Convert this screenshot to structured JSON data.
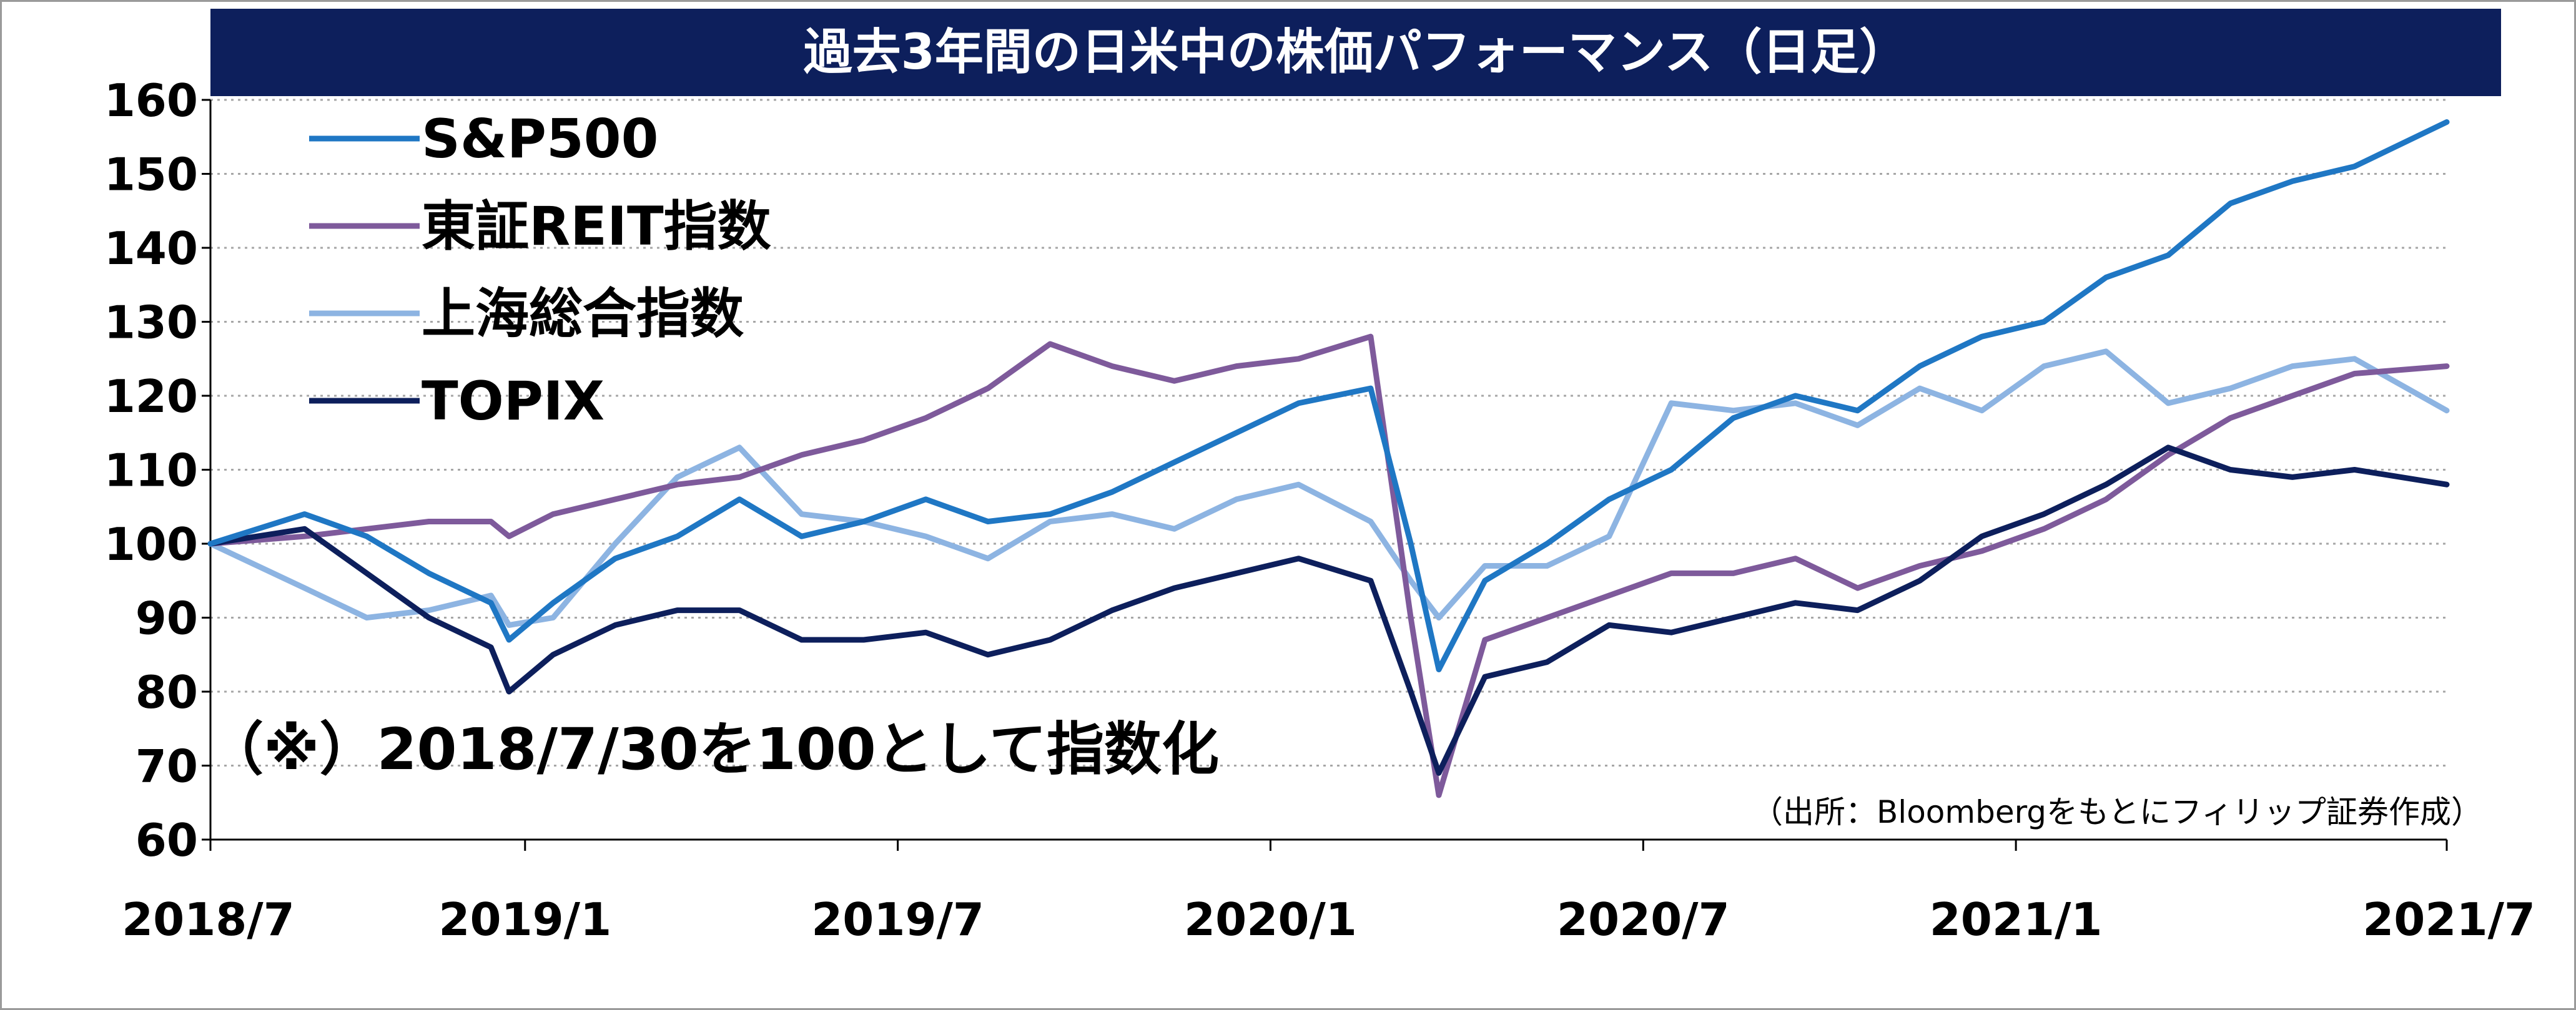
{
  "chart_data": {
    "type": "line",
    "title": "過去3年間の日米中の株価パフォーマンス（日足）",
    "note": "（※）2018/7/30を100として指数化",
    "source": "（出所：Bloombergをもとにフィリップ証券作成）",
    "x_ticks": [
      "2018/7",
      "2019/1",
      "2019/7",
      "2020/1",
      "2020/7",
      "2021/1",
      "2021/7"
    ],
    "y_ticks": [
      60,
      70,
      80,
      90,
      100,
      110,
      120,
      130,
      140,
      150,
      160
    ],
    "ylim": [
      60,
      160
    ],
    "xlim": [
      "2018/7/30",
      "2021/7/30"
    ],
    "grid": true,
    "legend_position": "top-left",
    "colors": {
      "title_bg": "#0d1f5c",
      "title_text": "#ffffff",
      "gridline": "#a6a6a6"
    },
    "x": [
      "2018/7/30",
      "2018/9",
      "2018/10",
      "2018/11",
      "2018/12",
      "2018/12/24",
      "2019/1",
      "2019/2",
      "2019/3",
      "2019/4",
      "2019/5",
      "2019/6",
      "2019/7",
      "2019/8",
      "2019/9",
      "2019/10",
      "2019/11",
      "2019/12",
      "2020/1",
      "2020/2/20",
      "2020/3/9",
      "2020/3/23",
      "2020/4",
      "2020/5",
      "2020/6",
      "2020/7",
      "2020/8",
      "2020/9",
      "2020/10",
      "2020/11",
      "2020/12",
      "2021/1",
      "2021/2",
      "2021/3",
      "2021/4",
      "2021/5",
      "2021/6",
      "2021/7/30"
    ],
    "series": [
      {
        "name": "S&P500",
        "color": "#1f77c4",
        "values": [
          100,
          104,
          101,
          96,
          92,
          87,
          92,
          98,
          101,
          106,
          101,
          103,
          106,
          103,
          104,
          107,
          111,
          115,
          119,
          121,
          100,
          83,
          95,
          100,
          106,
          110,
          117,
          120,
          118,
          124,
          128,
          130,
          136,
          139,
          146,
          149,
          151,
          157
        ]
      },
      {
        "name": "東証REIT指数",
        "color": "#7e5a9b",
        "values": [
          100,
          101,
          102,
          103,
          103,
          101,
          104,
          106,
          108,
          109,
          112,
          114,
          117,
          121,
          127,
          124,
          122,
          124,
          125,
          128,
          90,
          66,
          87,
          90,
          93,
          96,
          96,
          98,
          94,
          97,
          99,
          102,
          106,
          112,
          117,
          120,
          123,
          124
        ]
      },
      {
        "name": "上海総合指数",
        "color": "#8db4e2",
        "values": [
          100,
          94,
          90,
          91,
          93,
          89,
          90,
          100,
          109,
          113,
          104,
          103,
          101,
          98,
          103,
          104,
          102,
          106,
          108,
          103,
          95,
          90,
          97,
          97,
          101,
          119,
          118,
          119,
          116,
          121,
          118,
          124,
          126,
          119,
          121,
          124,
          125,
          118
        ]
      },
      {
        "name": "TOPIX",
        "color": "#0d1f5c",
        "values": [
          100,
          102,
          96,
          90,
          86,
          80,
          85,
          89,
          91,
          91,
          87,
          87,
          88,
          85,
          87,
          91,
          94,
          96,
          98,
          95,
          80,
          69,
          82,
          84,
          89,
          88,
          90,
          92,
          91,
          95,
          101,
          104,
          108,
          113,
          110,
          109,
          110,
          108
        ]
      }
    ]
  }
}
